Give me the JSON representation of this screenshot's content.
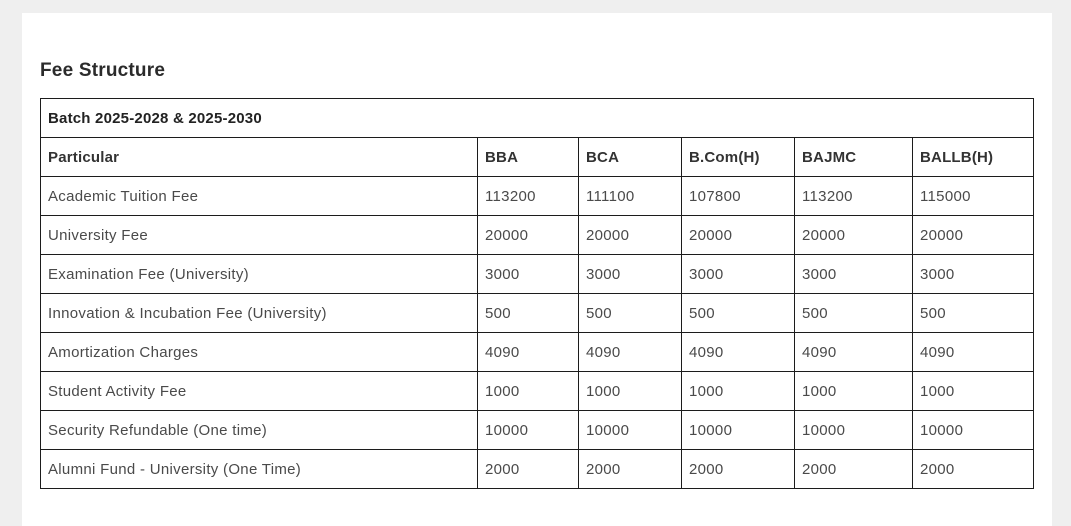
{
  "page": {
    "title": "Fee Structure"
  },
  "table": {
    "batch_header": "Batch 2025-2028 & 2025-2030",
    "columns": [
      "Particular",
      "BBA",
      "BCA",
      "B.Com(H)",
      "BAJMC",
      "BALLB(H)"
    ],
    "rows": [
      {
        "particular": "Academic Tuition Fee",
        "values": [
          "113200",
          "111100",
          "107800",
          "113200",
          "115000"
        ]
      },
      {
        "particular": "University Fee",
        "values": [
          "20000",
          "20000",
          "20000",
          "20000",
          "20000"
        ]
      },
      {
        "particular": "Examination Fee (University)",
        "values": [
          "3000",
          "3000",
          "3000",
          "3000",
          "3000"
        ]
      },
      {
        "particular": "Innovation & Incubation Fee (University)",
        "values": [
          "500",
          "500",
          "500",
          "500",
          "500"
        ]
      },
      {
        "particular": "Amortization Charges",
        "values": [
          "4090",
          "4090",
          "4090",
          "4090",
          "4090"
        ]
      },
      {
        "particular": "Student Activity Fee",
        "values": [
          "1000",
          "1000",
          "1000",
          "1000",
          "1000"
        ]
      },
      {
        "particular": "Security Refundable  (One time)",
        "values": [
          "10000",
          "10000",
          "10000",
          "10000",
          "10000"
        ]
      },
      {
        "particular": "Alumni Fund - University (One Time)",
        "values": [
          "2000",
          "2000",
          "2000",
          "2000",
          "2000"
        ]
      }
    ]
  }
}
